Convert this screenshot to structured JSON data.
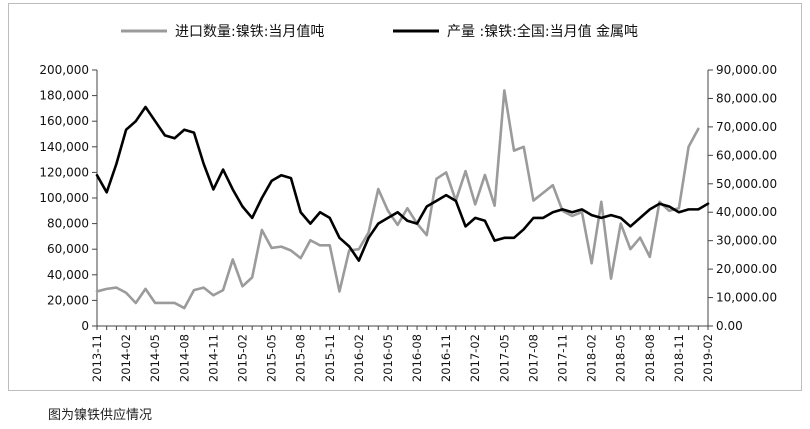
{
  "caption": "图为镍铁供应情况",
  "chart_data": {
    "type": "line",
    "title": "",
    "legend_position": "top",
    "grid": false,
    "x": [
      "2013-11",
      "2013-12",
      "2014-01",
      "2014-02",
      "2014-03",
      "2014-04",
      "2014-05",
      "2014-06",
      "2014-07",
      "2014-08",
      "2014-09",
      "2014-10",
      "2014-11",
      "2014-12",
      "2015-01",
      "2015-02",
      "2015-03",
      "2015-04",
      "2015-05",
      "2015-06",
      "2015-07",
      "2015-08",
      "2015-09",
      "2015-10",
      "2015-11",
      "2015-12",
      "2016-01",
      "2016-02",
      "2016-03",
      "2016-04",
      "2016-05",
      "2016-06",
      "2016-07",
      "2016-08",
      "2016-09",
      "2016-10",
      "2016-11",
      "2016-12",
      "2017-01",
      "2017-02",
      "2017-03",
      "2017-04",
      "2017-05",
      "2017-06",
      "2017-07",
      "2017-08",
      "2017-09",
      "2017-10",
      "2017-11",
      "2017-12",
      "2018-01",
      "2018-02",
      "2018-03",
      "2018-04",
      "2018-05",
      "2018-06",
      "2018-07",
      "2018-08",
      "2018-09",
      "2018-10",
      "2018-11",
      "2018-12",
      "2019-01",
      "2019-02"
    ],
    "x_tick_labels": [
      "2013-11",
      "2014-02",
      "2014-05",
      "2014-08",
      "2014-11",
      "2015-02",
      "2015-05",
      "2015-08",
      "2015-11",
      "2016-02",
      "2016-05",
      "2016-08",
      "2016-11",
      "2017-02",
      "2017-05",
      "2017-08",
      "2017-11",
      "2018-02",
      "2018-05",
      "2018-08",
      "2018-11",
      "2019-02"
    ],
    "y_left": {
      "min": 0,
      "max": 200000,
      "step": 20000,
      "tick_labels": [
        "0",
        "20,000",
        "40,000",
        "60,000",
        "80,000",
        "100,000",
        "120,000",
        "140,000",
        "160,000",
        "180,000",
        "200,000"
      ]
    },
    "y_right": {
      "min": 0,
      "max": 90000,
      "step": 10000,
      "tick_labels": [
        "0.00",
        "10,000.00",
        "20,000.00",
        "30,000.00",
        "40,000.00",
        "50,000.00",
        "60,000.00",
        "70,000.00",
        "80,000.00",
        "90,000.00"
      ]
    },
    "series": [
      {
        "name": "进口数量:镍铁:当月值吨",
        "axis": "left",
        "color": "#9b9b9b",
        "values": [
          27000,
          29000,
          30000,
          26000,
          18000,
          29000,
          18000,
          18000,
          18000,
          14000,
          28000,
          30000,
          24000,
          28000,
          52000,
          31000,
          38000,
          75000,
          61000,
          62000,
          59000,
          53000,
          67000,
          63000,
          63000,
          27000,
          59000,
          60000,
          73000,
          107000,
          90000,
          79000,
          92000,
          80000,
          71000,
          115000,
          120000,
          98000,
          121000,
          95000,
          118000,
          94000,
          184000,
          137000,
          140000,
          98000,
          104000,
          110000,
          90000,
          86000,
          89000,
          49000,
          97000,
          37000,
          80000,
          60000,
          69000,
          54000,
          97000,
          90000,
          92000,
          140000,
          154000,
          null
        ]
      },
      {
        "name": "产量 :镍铁:全国:当月值 金属吨",
        "axis": "right",
        "color": "#000000",
        "values": [
          53000,
          47000,
          57000,
          69000,
          72000,
          77000,
          72000,
          67000,
          66000,
          69000,
          68000,
          57000,
          48000,
          55000,
          48000,
          42000,
          38000,
          45000,
          51000,
          53000,
          52000,
          40000,
          36000,
          40000,
          38000,
          31000,
          28000,
          23000,
          31000,
          36000,
          38000,
          40000,
          37000,
          36000,
          42000,
          44000,
          46000,
          44000,
          35000,
          38000,
          37000,
          30000,
          31000,
          31000,
          34000,
          38000,
          38000,
          40000,
          41000,
          40000,
          41000,
          39000,
          38000,
          39000,
          38000,
          35000,
          38000,
          41000,
          43000,
          42000,
          40000,
          41000,
          41000,
          43000
        ]
      }
    ]
  }
}
